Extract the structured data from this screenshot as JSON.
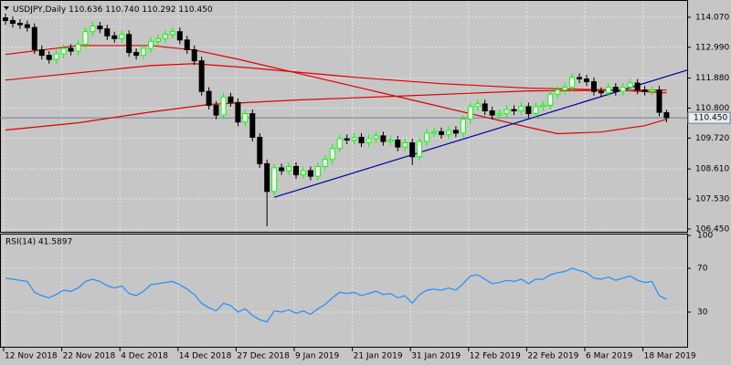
{
  "chart_data": {
    "type": "candlestick",
    "title": "USDJPY,Daily",
    "title_values": [
      "110.636",
      "110.740",
      "110.292",
      "110.450"
    ],
    "categories": [
      "12 Nov 2018",
      null,
      null,
      null,
      null,
      null,
      null,
      null,
      "22 Nov 2018",
      null,
      null,
      null,
      null,
      null,
      null,
      null,
      "4 Dec 2018",
      null,
      null,
      null,
      null,
      null,
      null,
      null,
      "14 Dec 2018",
      null,
      null,
      null,
      null,
      null,
      null,
      null,
      "27 Dec 2018",
      null,
      null,
      null,
      null,
      null,
      null,
      null,
      "9 Jan 2019",
      null,
      null,
      null,
      null,
      null,
      null,
      null,
      "21 Jan 2019",
      null,
      null,
      null,
      null,
      null,
      null,
      null,
      "31 Jan 2019",
      null,
      null,
      null,
      null,
      null,
      null,
      null,
      "12 Feb 2019",
      null,
      null,
      null,
      null,
      null,
      null,
      null,
      "22 Feb 2019",
      null,
      null,
      null,
      null,
      null,
      null,
      null,
      "6 Mar 2019",
      null,
      null,
      null,
      null,
      null,
      null,
      null,
      "18 Mar 2019",
      null,
      null,
      null
    ],
    "open": [
      114.05,
      113.95,
      113.85,
      113.8,
      113.7,
      112.9,
      112.7,
      112.55,
      112.75,
      112.95,
      112.85,
      113.1,
      113.55,
      113.75,
      113.65,
      113.4,
      113.3,
      113.45,
      112.8,
      112.7,
      112.95,
      113.2,
      113.3,
      113.45,
      113.55,
      113.25,
      112.9,
      112.5,
      111.4,
      110.9,
      110.55,
      111.2,
      111.0,
      110.3,
      110.6,
      109.75,
      108.8,
      107.8,
      108.65,
      108.55,
      108.7,
      108.4,
      108.55,
      108.35,
      108.7,
      108.95,
      109.35,
      109.7,
      109.65,
      109.75,
      109.55,
      109.7,
      109.8,
      109.6,
      109.65,
      109.4,
      109.55,
      109.05,
      109.6,
      109.9,
      109.95,
      109.85,
      110.0,
      109.9,
      110.4,
      110.85,
      110.95,
      110.7,
      110.55,
      110.6,
      110.75,
      110.7,
      110.85,
      110.6,
      110.85,
      110.9,
      111.3,
      111.45,
      111.55,
      111.9,
      111.85,
      111.75,
      111.4,
      111.35,
      111.55,
      111.4,
      111.55,
      111.7,
      111.45,
      111.4,
      111.45,
      110.636
    ],
    "high": [
      114.2,
      114.1,
      114.0,
      113.95,
      113.85,
      113.05,
      112.85,
      112.9,
      113.1,
      113.1,
      113.25,
      113.7,
      113.9,
      113.9,
      113.8,
      113.55,
      113.6,
      113.6,
      112.95,
      113.1,
      113.35,
      113.45,
      113.6,
      113.7,
      113.7,
      113.4,
      113.05,
      112.65,
      111.55,
      111.05,
      111.35,
      111.35,
      111.15,
      110.75,
      110.75,
      109.9,
      108.95,
      108.8,
      108.8,
      108.85,
      108.85,
      108.7,
      108.7,
      108.85,
      109.1,
      109.5,
      109.85,
      109.85,
      109.9,
      109.9,
      109.85,
      109.95,
      109.95,
      109.8,
      109.8,
      109.7,
      109.7,
      109.75,
      110.05,
      110.1,
      110.1,
      110.15,
      110.15,
      110.55,
      111.0,
      111.1,
      111.1,
      110.85,
      110.75,
      110.9,
      110.9,
      111.0,
      111.0,
      111.0,
      111.05,
      111.45,
      111.6,
      111.7,
      112.05,
      112.05,
      112.0,
      111.9,
      111.55,
      111.7,
      111.7,
      111.7,
      111.85,
      111.85,
      111.6,
      111.6,
      111.6,
      110.74
    ],
    "low": [
      113.8,
      113.7,
      113.65,
      113.55,
      112.75,
      112.55,
      112.4,
      112.4,
      112.6,
      112.7,
      112.7,
      112.95,
      113.4,
      113.5,
      113.25,
      113.15,
      113.15,
      112.65,
      112.55,
      112.55,
      112.8,
      113.05,
      113.15,
      113.3,
      113.1,
      112.75,
      112.35,
      111.25,
      110.75,
      110.4,
      110.4,
      110.85,
      110.15,
      110.15,
      109.6,
      108.65,
      106.55,
      107.65,
      108.4,
      108.4,
      108.25,
      108.25,
      108.2,
      108.2,
      108.55,
      108.8,
      109.2,
      109.5,
      109.5,
      109.4,
      109.4,
      109.55,
      109.45,
      109.45,
      109.25,
      109.25,
      108.75,
      108.9,
      109.45,
      109.75,
      109.7,
      109.7,
      109.75,
      109.75,
      110.25,
      110.7,
      110.55,
      110.4,
      110.4,
      110.45,
      110.55,
      110.55,
      110.45,
      110.45,
      110.7,
      110.75,
      111.15,
      111.3,
      111.4,
      111.7,
      111.6,
      111.25,
      111.2,
      111.2,
      111.25,
      111.25,
      111.4,
      111.3,
      111.25,
      111.25,
      110.5,
      110.292
    ],
    "close": [
      113.95,
      113.85,
      113.8,
      113.7,
      112.9,
      112.7,
      112.55,
      112.75,
      112.95,
      112.85,
      113.1,
      113.55,
      113.75,
      113.65,
      113.4,
      113.3,
      113.45,
      112.8,
      112.7,
      112.95,
      113.2,
      113.3,
      113.45,
      113.55,
      113.25,
      112.9,
      112.5,
      111.4,
      110.9,
      110.55,
      111.2,
      111.0,
      110.3,
      110.6,
      109.75,
      108.8,
      107.8,
      108.65,
      108.55,
      108.7,
      108.4,
      108.55,
      108.35,
      108.7,
      108.95,
      109.35,
      109.7,
      109.65,
      109.75,
      109.55,
      109.7,
      109.8,
      109.6,
      109.65,
      109.4,
      109.55,
      109.05,
      109.6,
      109.9,
      109.95,
      109.85,
      110.0,
      109.9,
      110.4,
      110.85,
      110.95,
      110.7,
      110.55,
      110.6,
      110.75,
      110.7,
      110.85,
      110.6,
      110.85,
      110.9,
      111.3,
      111.45,
      111.55,
      111.9,
      111.85,
      111.75,
      111.4,
      111.35,
      111.55,
      111.4,
      111.55,
      111.7,
      111.45,
      111.4,
      111.45,
      110.65,
      110.45
    ],
    "up_color": "#00ff00",
    "down_color": "#000000",
    "ylim": [
      106.35,
      114.69
    ],
    "yticks": [
      {
        "value": 114.07,
        "label": "114.070"
      },
      {
        "value": 112.99,
        "label": "112.990"
      },
      {
        "value": 111.88,
        "label": "111.880"
      },
      {
        "value": 110.8,
        "label": "110.800"
      },
      {
        "value": 109.72,
        "label": "109.720"
      },
      {
        "value": 108.61,
        "label": "108.610"
      },
      {
        "value": 107.53,
        "label": "107.530"
      },
      {
        "value": 106.45,
        "label": "106.450"
      }
    ],
    "grid": true,
    "current_price": {
      "value": 110.45,
      "label": "110.450"
    },
    "overlays": [
      {
        "color": "#e00000",
        "x": [
          0,
          10,
          20,
          26,
          32,
          40,
          48,
          56,
          64,
          72,
          76,
          82,
          88,
          91
        ],
        "values": [
          112.73,
          113.05,
          113.05,
          112.89,
          112.56,
          112.07,
          111.58,
          111.09,
          110.6,
          110.11,
          109.88,
          109.94,
          110.17,
          110.4
        ]
      },
      {
        "color": "#e00000",
        "x": [
          0,
          10,
          20,
          26,
          34,
          48,
          60,
          72,
          84,
          91
        ],
        "values": [
          111.81,
          112.07,
          112.33,
          112.4,
          112.24,
          111.91,
          111.68,
          111.52,
          111.45,
          111.35
        ]
      },
      {
        "color": "#e00000",
        "x": [
          0,
          10,
          20,
          28,
          40,
          56,
          72,
          91
        ],
        "values": [
          110.01,
          110.27,
          110.66,
          110.93,
          111.09,
          111.25,
          111.42,
          111.45
        ]
      },
      {
        "color": "#0000a0",
        "x": [
          37,
          94
        ],
        "values": [
          107.59,
          112.18
        ]
      }
    ],
    "rsi": {
      "title": "RSI(14) 41.5897",
      "color": "#1e90ff",
      "ylim": [
        0,
        100
      ],
      "yticks": [
        100,
        70,
        30
      ],
      "values": [
        61,
        60,
        59,
        58,
        48,
        45,
        43,
        46,
        50,
        49,
        52,
        58,
        60,
        58,
        54,
        52,
        54,
        47,
        45,
        49,
        55,
        56,
        57,
        58,
        55,
        51,
        46,
        38,
        34,
        31,
        38,
        36,
        30,
        33,
        27,
        23,
        21,
        31,
        30,
        32,
        29,
        31,
        28,
        33,
        37,
        43,
        48,
        47,
        48,
        45,
        47,
        49,
        46,
        47,
        43,
        45,
        38,
        46,
        50,
        51,
        50,
        52,
        50,
        56,
        63,
        64,
        60,
        56,
        57,
        59,
        58,
        60,
        56,
        60,
        60,
        64,
        66,
        67,
        70,
        68,
        66,
        61,
        60,
        62,
        59,
        61,
        63,
        59,
        57,
        58,
        45,
        41.5897
      ]
    }
  }
}
